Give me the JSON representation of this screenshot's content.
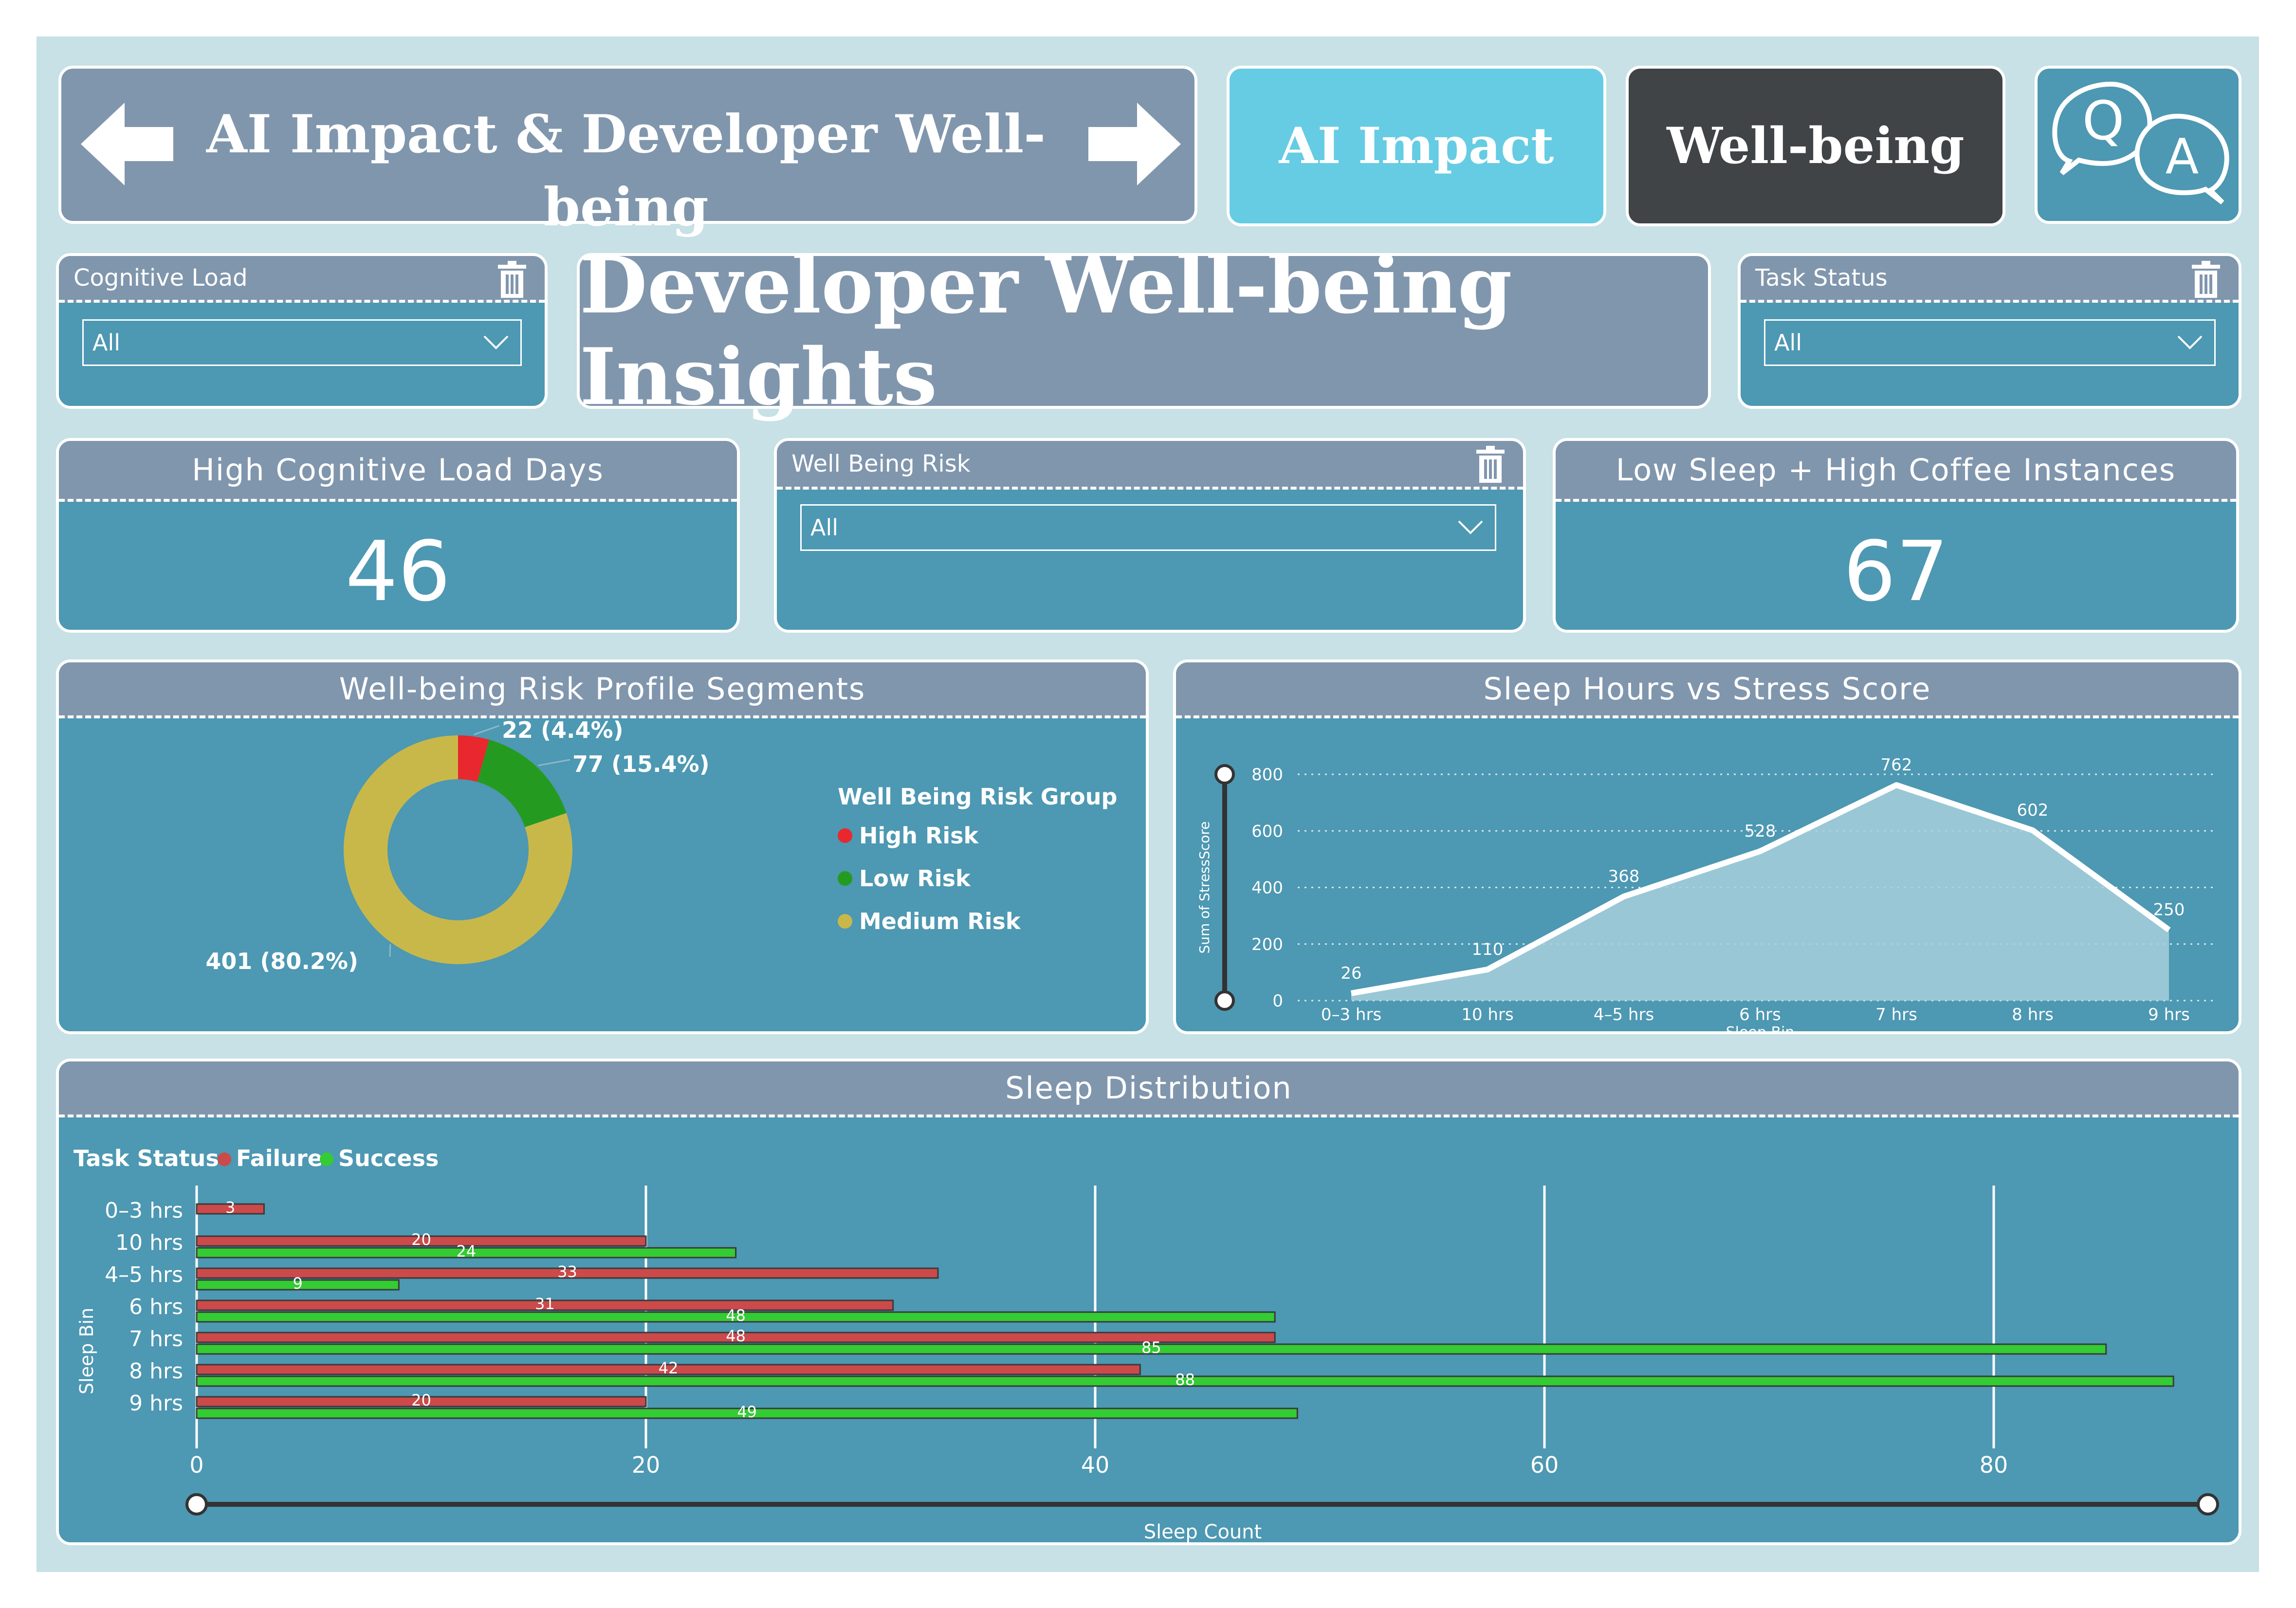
{
  "header": {
    "title": "AI Impact & Developer Well-being",
    "nav_ai_impact": "AI Impact",
    "nav_wellbeing": "Well-being",
    "qa_q": "Q",
    "qa_a": "A"
  },
  "page_title": "Developer Well-being Insights",
  "filters": {
    "cognitive_load": {
      "label": "Cognitive Load",
      "value": "All"
    },
    "task_status": {
      "label": "Task Status",
      "value": "All"
    },
    "well_being_risk": {
      "label": "Well Being Risk",
      "value": "All"
    }
  },
  "kpis": {
    "high_cognitive": {
      "label": "High Cognitive Load Days",
      "value": "46"
    },
    "low_sleep_coffee": {
      "label": "Low Sleep + High Coffee Instances",
      "value": "67"
    }
  },
  "colors": {
    "card": "#4d98b2",
    "header": "#8096ad",
    "background": "#c7e1e6",
    "ai_impact": "#66cce4",
    "wellbeing": "#404447",
    "high_risk": "#e8282e",
    "low_risk": "#249b20",
    "medium_risk": "#c8b84a",
    "failure": "#cc4a4a",
    "success": "#33cc33"
  },
  "donut_chart": {
    "title": "Well-being Risk Profile Segments",
    "legend_title": "Well Being Risk Group",
    "chart_data": {
      "type": "pie",
      "categories": [
        "High Risk",
        "Low Risk",
        "Medium Risk"
      ],
      "values": [
        22,
        77,
        401
      ],
      "labels": [
        "22 (4.4%)",
        "77 (15.4%)",
        "401 (80.2%)"
      ],
      "legend_placement": "right"
    }
  },
  "line_chart": {
    "title": "Sleep Hours vs Stress Score",
    "chart_data": {
      "type": "area",
      "categories": [
        "0–3 hrs",
        "10 hrs",
        "4–5 hrs",
        "6 hrs",
        "7 hrs",
        "8 hrs",
        "9 hrs"
      ],
      "values": [
        26,
        110,
        368,
        528,
        762,
        602,
        250
      ],
      "xlabel": "Sleep Bin",
      "ylabel": "Sum of StressScore",
      "ylim": [
        0,
        800
      ],
      "yticks": [
        0,
        200,
        400,
        600,
        800
      ],
      "grid": true
    }
  },
  "bar_chart": {
    "title": "Sleep Distribution",
    "legend_title": "Task Status",
    "chart_data": {
      "type": "bar",
      "orientation": "horizontal",
      "categories": [
        "0–3 hrs",
        "10 hrs",
        "4–5 hrs",
        "6 hrs",
        "7 hrs",
        "8 hrs",
        "9 hrs"
      ],
      "series": [
        {
          "name": "Failure",
          "values": [
            3,
            20,
            33,
            31,
            48,
            42,
            20
          ]
        },
        {
          "name": "Success",
          "values": [
            null,
            24,
            9,
            48,
            85,
            88,
            49
          ]
        }
      ],
      "xlabel": "Sleep Count",
      "ylabel": "Sleep Bin",
      "xlim": [
        0,
        90
      ],
      "xticks": [
        0,
        20,
        40,
        60,
        80
      ],
      "legend_placement": "top-left"
    }
  }
}
